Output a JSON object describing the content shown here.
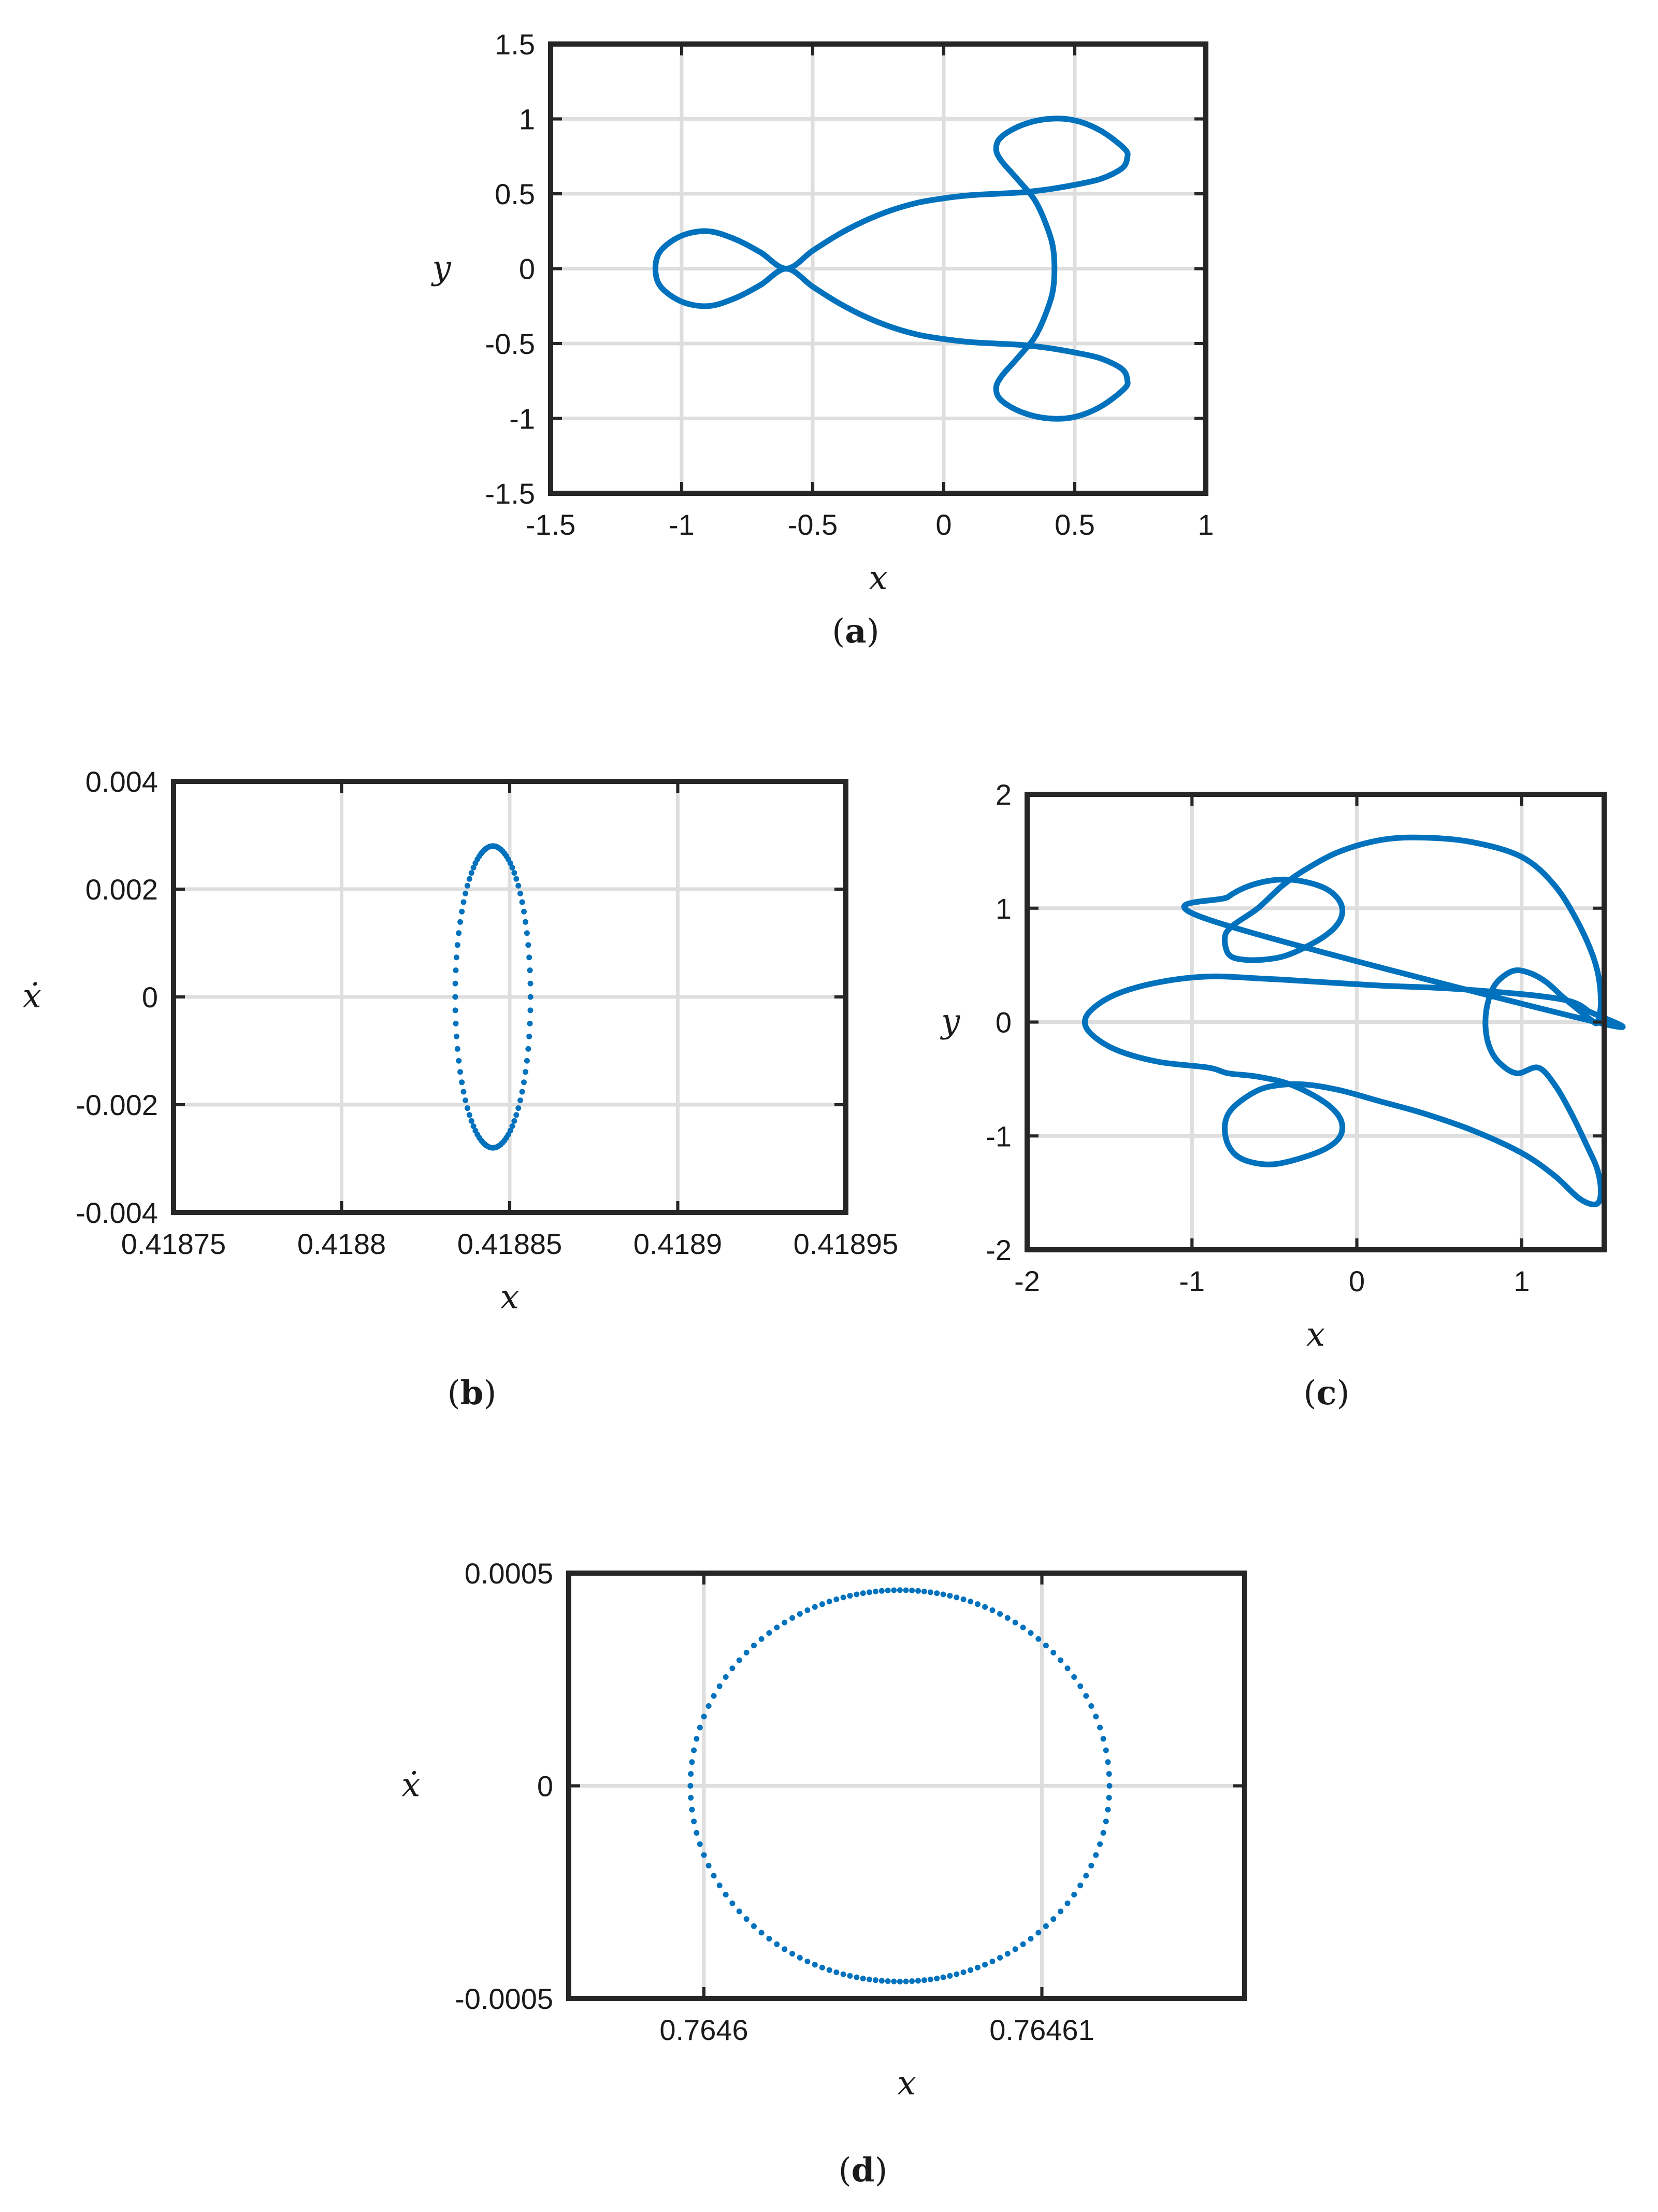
{
  "figure": {
    "panels": [
      {
        "id": "a",
        "caption_letter": "a",
        "chart_data": {
          "type": "line",
          "title": "",
          "xlabel": "x",
          "ylabel": "y",
          "xlim": [
            -1.5,
            1
          ],
          "ylim": [
            -1.5,
            1.5
          ],
          "xticks": [
            -1.5,
            -1,
            -0.5,
            0,
            0.5,
            1
          ],
          "yticks": [
            -1.5,
            -1,
            -0.5,
            0,
            0.5,
            1,
            1.5
          ],
          "xtick_labels": [
            "-1.5",
            "-1",
            "-0.5",
            "0",
            "0.5",
            "1"
          ],
          "ytick_labels": [
            "-1.5",
            "-1",
            "-0.5",
            "0",
            "0.5",
            "1",
            "1.5"
          ],
          "grid": true,
          "color": "#0072BD",
          "series": [
            {
              "closed": true,
              "x": [
                -0.6,
                -0.5,
                -0.4,
                -0.3,
                -0.2,
                -0.1,
                0.0,
                0.1,
                0.2,
                0.3,
                0.4,
                0.5,
                0.6,
                0.68,
                0.7,
                0.69,
                0.6,
                0.5,
                0.4,
                0.3,
                0.22,
                0.2,
                0.22,
                0.28,
                0.35,
                0.4,
                0.42,
                0.42,
                0.4,
                0.35,
                0.28,
                0.22,
                0.2,
                0.22,
                0.3,
                0.4,
                0.5,
                0.6,
                0.69,
                0.7,
                0.68,
                0.6,
                0.5,
                0.4,
                0.3,
                0.2,
                0.1,
                0.0,
                -0.1,
                -0.2,
                -0.3,
                -0.4,
                -0.5,
                -0.6,
                -0.7,
                -0.8,
                -0.9,
                -1.0,
                -1.08,
                -1.1,
                -1.08,
                -1.0,
                -0.9,
                -0.8,
                -0.7
              ],
              "y": [
                0.0,
                0.12,
                0.23,
                0.32,
                0.39,
                0.44,
                0.47,
                0.49,
                0.5,
                0.51,
                0.53,
                0.56,
                0.6,
                0.67,
                0.74,
                0.8,
                0.92,
                0.99,
                1.0,
                0.96,
                0.88,
                0.8,
                0.72,
                0.6,
                0.45,
                0.25,
                0.1,
                -0.1,
                -0.25,
                -0.45,
                -0.6,
                -0.72,
                -0.8,
                -0.88,
                -0.96,
                -1.0,
                -0.99,
                -0.92,
                -0.8,
                -0.74,
                -0.67,
                -0.6,
                -0.56,
                -0.53,
                -0.51,
                -0.5,
                -0.49,
                -0.47,
                -0.44,
                -0.39,
                -0.32,
                -0.23,
                -0.12,
                0.0,
                -0.11,
                -0.2,
                -0.25,
                -0.22,
                -0.12,
                0.0,
                0.12,
                0.22,
                0.25,
                0.2,
                0.11
              ]
            }
          ]
        }
      },
      {
        "id": "b",
        "caption_letter": "b",
        "chart_data": {
          "type": "scatter",
          "title": "",
          "xlabel": "x",
          "ylabel": "ẋ",
          "xlim": [
            0.41875,
            0.41895
          ],
          "ylim": [
            -0.004,
            0.004
          ],
          "xticks": [
            0.41875,
            0.4188,
            0.41885,
            0.4189,
            0.41895
          ],
          "yticks": [
            -0.004,
            -0.002,
            0,
            0.002,
            0.004
          ],
          "xtick_labels": [
            "0.41875",
            "0.4188",
            "0.41885",
            "0.4189",
            "0.41895"
          ],
          "ytick_labels": [
            "-0.004",
            "-0.002",
            "0",
            "0.002",
            "0.004"
          ],
          "grid": true,
          "color": "#0072BD",
          "ellipse": {
            "cx": 0.418845,
            "cy": 0.0,
            "rx": 1.12e-05,
            "ry": 0.0028
          },
          "n_points": 96
        }
      },
      {
        "id": "c",
        "caption_letter": "c",
        "chart_data": {
          "type": "line",
          "title": "",
          "xlabel": "x",
          "ylabel": "y",
          "xlim": [
            -2,
            1.5
          ],
          "ylim": [
            -2,
            2
          ],
          "xticks": [
            -2,
            -1,
            0,
            1
          ],
          "yticks": [
            -2,
            -1,
            0,
            1,
            2
          ],
          "xtick_labels": [
            "-2",
            "-1",
            "0",
            "1"
          ],
          "ytick_labels": [
            "-2",
            "-1",
            "0",
            "1",
            "2"
          ],
          "grid": true,
          "color": "#0072BD",
          "series": [
            {
              "closed": true,
              "x": [
                1.45,
                1.4,
                1.3,
                1.1,
                0.8,
                0.5,
                0.15,
                -0.2,
                -0.55,
                -0.9,
                -1.2,
                -1.45,
                -1.6,
                -1.65,
                -1.6,
                -1.45,
                -1.2,
                -0.9,
                -0.78,
                -0.6,
                -0.4,
                -0.2,
                -0.1,
                -0.1,
                -0.2,
                -0.4,
                -0.55,
                -0.7,
                -0.78,
                -0.8,
                -0.75,
                -0.6,
                -0.45,
                -0.3,
                -0.1,
                0.15,
                0.4,
                0.7,
                1.0,
                1.2,
                1.35,
                1.45,
                1.48,
                1.46,
                1.4,
                1.3,
                1.2,
                1.1,
                0.97,
                0.86,
                0.8,
                0.78,
                0.8,
                0.85,
                0.95,
                1.05,
                1.15,
                1.25,
                1.35,
                1.42,
                1.46,
                1.48,
                1.45,
                1.35,
                1.2,
                1.0,
                0.7,
                0.4,
                0.15,
                -0.1,
                -0.3,
                -0.45,
                -0.6,
                -0.75,
                -0.8,
                -0.78,
                -0.7,
                -0.55,
                -0.4,
                -0.2,
                -0.1,
                -0.1,
                -0.2,
                -0.4,
                -0.6,
                -0.78,
                -0.9
              ],
              "y": [
                0.0,
                0.1,
                0.18,
                0.23,
                0.27,
                0.3,
                0.32,
                0.35,
                0.38,
                0.4,
                0.35,
                0.25,
                0.12,
                0.0,
                -0.12,
                -0.25,
                -0.35,
                -0.4,
                -0.45,
                -0.48,
                -0.55,
                -0.7,
                -0.85,
                -1.0,
                -1.12,
                -1.22,
                -1.25,
                -1.2,
                -1.08,
                -0.9,
                -0.75,
                -0.6,
                -0.55,
                -0.55,
                -0.6,
                -0.7,
                -0.8,
                -0.95,
                -1.15,
                -1.35,
                -1.55,
                -1.6,
                -1.5,
                -1.3,
                -1.1,
                -0.8,
                -0.55,
                -0.4,
                -0.45,
                -0.35,
                -0.2,
                0.0,
                0.2,
                0.35,
                0.45,
                0.43,
                0.35,
                0.22,
                0.1,
                0.02,
                0.0,
                0.2,
                0.5,
                0.85,
                1.2,
                1.45,
                1.58,
                1.62,
                1.6,
                1.5,
                1.35,
                1.2,
                1.0,
                0.85,
                0.75,
                0.6,
                0.55,
                0.55,
                0.6,
                0.75,
                0.9,
                1.05,
                1.18,
                1.25,
                1.22,
                1.1,
                0.9
              ]
            }
          ]
        }
      },
      {
        "id": "d",
        "caption_letter": "d",
        "chart_data": {
          "type": "scatter",
          "title": "",
          "xlabel": "x",
          "ylabel": "ẋ",
          "xlim": [
            0.764596,
            0.764616
          ],
          "ylim": [
            -0.0005,
            0.0005
          ],
          "xticks": [
            0.7646,
            0.76461
          ],
          "yticks": [
            -0.0005,
            0,
            0.0005
          ],
          "xtick_labels": [
            "0.7646",
            "0.76461"
          ],
          "ytick_labels": [
            "-0.0005",
            "0",
            "0.0005"
          ],
          "grid": true,
          "color": "#0072BD",
          "ellipse": {
            "cx": 0.7646058,
            "cy": 0.0,
            "rx": 6.2e-06,
            "ry": 0.00046
          },
          "n_points": 140
        }
      }
    ]
  }
}
